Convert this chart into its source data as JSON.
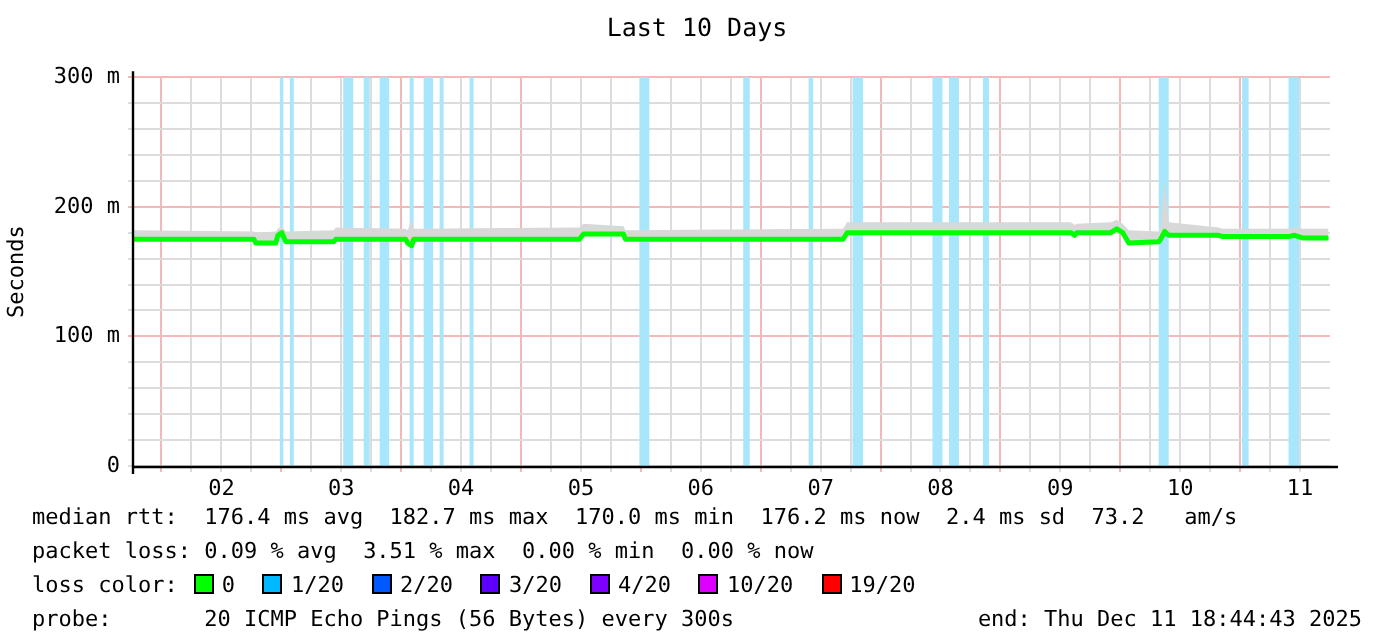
{
  "chart_data": {
    "type": "line",
    "title": "Last 10 Days",
    "ylabel": "Seconds",
    "legend_title": "loss color:",
    "legend": "bottom left",
    "grid": true,
    "xlim": [
      "2025-12-01T06:30",
      "2025-12-11T06:00"
    ],
    "xticks": [
      {
        "value": "2025-12-01T12:00",
        "label": null
      },
      {
        "value": "2025-12-01T18:00",
        "label": null
      },
      {
        "value": "2025-12-02T00:00",
        "label": "02"
      },
      {
        "value": "2025-12-02T06:00",
        "label": null
      },
      {
        "value": "2025-12-02T12:00",
        "label": null
      },
      {
        "value": "2025-12-02T18:00",
        "label": null
      },
      {
        "value": "2025-12-03T00:00",
        "label": "03"
      },
      {
        "value": "2025-12-03T06:00",
        "label": null
      },
      {
        "value": "2025-12-03T12:00",
        "label": null
      },
      {
        "value": "2025-12-03T18:00",
        "label": null
      },
      {
        "value": "2025-12-04T00:00",
        "label": "04"
      },
      {
        "value": "2025-12-04T06:00",
        "label": null
      },
      {
        "value": "2025-12-04T12:00",
        "label": null
      },
      {
        "value": "2025-12-04T18:00",
        "label": null
      },
      {
        "value": "2025-12-05T00:00",
        "label": "05"
      },
      {
        "value": "2025-12-05T06:00",
        "label": null
      },
      {
        "value": "2025-12-05T12:00",
        "label": null
      },
      {
        "value": "2025-12-05T18:00",
        "label": null
      },
      {
        "value": "2025-12-06T00:00",
        "label": "06"
      },
      {
        "value": "2025-12-06T06:00",
        "label": null
      },
      {
        "value": "2025-12-06T12:00",
        "label": null
      },
      {
        "value": "2025-12-06T18:00",
        "label": null
      },
      {
        "value": "2025-12-07T00:00",
        "label": "07"
      },
      {
        "value": "2025-12-07T06:00",
        "label": null
      },
      {
        "value": "2025-12-07T12:00",
        "label": null
      },
      {
        "value": "2025-12-07T18:00",
        "label": null
      },
      {
        "value": "2025-12-08T00:00",
        "label": "08"
      },
      {
        "value": "2025-12-08T06:00",
        "label": null
      },
      {
        "value": "2025-12-08T12:00",
        "label": null
      },
      {
        "value": "2025-12-08T18:00",
        "label": null
      },
      {
        "value": "2025-12-09T00:00",
        "label": "09"
      },
      {
        "value": "2025-12-09T06:00",
        "label": null
      },
      {
        "value": "2025-12-09T12:00",
        "label": null
      },
      {
        "value": "2025-12-09T18:00",
        "label": null
      },
      {
        "value": "2025-12-10T00:00",
        "label": "10"
      },
      {
        "value": "2025-12-10T06:00",
        "label": null
      },
      {
        "value": "2025-12-10T12:00",
        "label": null
      },
      {
        "value": "2025-12-10T18:00",
        "label": null
      },
      {
        "value": "2025-12-11T00:00",
        "label": "11"
      }
    ],
    "ylim": [
      0,
      300
    ],
    "yticks": [
      {
        "value": 0,
        "label": "0"
      },
      {
        "value": 20,
        "label": null
      },
      {
        "value": 40,
        "label": null
      },
      {
        "value": 60,
        "label": null
      },
      {
        "value": 80,
        "label": null
      },
      {
        "value": 100,
        "label": "100 m"
      },
      {
        "value": 120,
        "label": null
      },
      {
        "value": 140,
        "label": null
      },
      {
        "value": 160,
        "label": null
      },
      {
        "value": 180,
        "label": null
      },
      {
        "value": 200,
        "label": "200 m"
      },
      {
        "value": 220,
        "label": null
      },
      {
        "value": 240,
        "label": null
      },
      {
        "value": 260,
        "label": null
      },
      {
        "value": 280,
        "label": null
      },
      {
        "value": 300,
        "label": "300 m"
      }
    ],
    "series": [
      {
        "name": "0",
        "color": "#00ff00",
        "x": [
          "2025-12-01T06:30",
          "2025-12-02T06:30",
          "2025-12-02T06:54",
          "2025-12-02T10:54",
          "2025-12-02T11:18",
          "2025-12-02T12:06",
          "2025-12-02T12:54",
          "2025-12-02T22:30",
          "2025-12-02T22:54",
          "2025-12-03T12:54",
          "2025-12-03T13:18",
          "2025-12-03T14:06",
          "2025-12-03T14:30",
          "2025-12-04T23:42",
          "2025-12-05T00:30",
          "2025-12-05T08:30",
          "2025-12-05T08:54",
          "2025-12-07T04:30",
          "2025-12-07T05:18",
          "2025-12-09T02:06",
          "2025-12-09T02:54",
          "2025-12-09T03:18",
          "2025-12-09T10:06",
          "2025-12-09T11:18",
          "2025-12-09T12:30",
          "2025-12-09T13:42",
          "2025-12-09T19:42",
          "2025-12-09T20:06",
          "2025-12-09T20:54",
          "2025-12-09T21:42",
          "2025-12-10T07:42",
          "2025-12-10T08:30",
          "2025-12-10T21:42",
          "2025-12-10T22:54",
          "2025-12-11T00:30",
          "2025-12-11T05:42"
        ],
        "values": [
          175,
          175,
          172,
          172,
          178,
          180,
          173,
          173,
          175,
          175,
          172,
          170,
          175,
          175,
          179,
          179,
          175,
          175,
          180,
          180,
          178,
          180,
          180,
          183,
          180,
          172,
          173,
          175,
          181,
          178,
          178,
          177,
          177,
          178,
          176,
          176
        ],
        "lower": [
          174,
          174,
          171,
          171,
          176,
          178,
          172,
          172,
          174,
          174,
          171,
          169,
          174,
          174,
          178,
          178,
          174,
          174,
          179,
          179,
          177,
          179,
          179,
          182,
          179,
          171,
          172,
          174,
          179,
          177,
          177,
          176,
          176,
          177,
          175,
          175
        ],
        "upper": [
          182,
          181,
          180,
          181,
          183,
          185,
          181,
          182,
          184,
          183,
          182,
          190,
          183,
          184,
          187,
          185,
          182,
          183,
          188,
          188,
          186,
          187,
          188,
          190,
          187,
          182,
          181,
          184,
          220,
          188,
          184,
          183,
          183,
          184,
          183,
          183
        ]
      },
      {
        "name": "1/20",
        "color": "#00b8ff"
      },
      {
        "name": "2/20",
        "color": "#0059ff"
      },
      {
        "name": "3/20",
        "color": "#5e00ff"
      },
      {
        "name": "4/20",
        "color": "#7e00ff"
      },
      {
        "name": "10/20",
        "color": "#dd00ff"
      },
      {
        "name": "19/20",
        "color": "#ff0000"
      }
    ],
    "bands": [
      {
        "axis": "x",
        "from": "2025-12-02T11:42",
        "to": "2025-12-02T12:24",
        "color": "#a8e6fc"
      },
      {
        "axis": "x",
        "from": "2025-12-02T13:42",
        "to": "2025-12-02T14:30",
        "color": "#a8e6fc"
      },
      {
        "axis": "x",
        "from": "2025-12-03T00:24",
        "to": "2025-12-03T02:24",
        "color": "#a8e6fc"
      },
      {
        "axis": "x",
        "from": "2025-12-03T04:30",
        "to": "2025-12-03T05:42",
        "color": "#a8e6fc"
      },
      {
        "axis": "x",
        "from": "2025-12-03T07:42",
        "to": "2025-12-03T09:36",
        "color": "#a8e6fc"
      },
      {
        "axis": "x",
        "from": "2025-12-03T13:42",
        "to": "2025-12-03T14:30",
        "color": "#a8e6fc"
      },
      {
        "axis": "x",
        "from": "2025-12-03T16:30",
        "to": "2025-12-03T18:24",
        "color": "#a8e6fc"
      },
      {
        "axis": "x",
        "from": "2025-12-03T19:42",
        "to": "2025-12-03T20:30",
        "color": "#a8e6fc"
      },
      {
        "axis": "x",
        "from": "2025-12-04T01:42",
        "to": "2025-12-04T02:30",
        "color": "#a8e6fc"
      },
      {
        "axis": "x",
        "from": "2025-12-05T11:42",
        "to": "2025-12-05T13:42",
        "color": "#a8e6fc"
      },
      {
        "axis": "x",
        "from": "2025-12-06T08:30",
        "to": "2025-12-06T09:48",
        "color": "#a8e6fc"
      },
      {
        "axis": "x",
        "from": "2025-12-06T21:36",
        "to": "2025-12-06T22:30",
        "color": "#a8e6fc"
      },
      {
        "axis": "x",
        "from": "2025-12-07T06:24",
        "to": "2025-12-07T08:30",
        "color": "#a8e6fc"
      },
      {
        "axis": "x",
        "from": "2025-12-07T22:24",
        "to": "2025-12-08T00:24",
        "color": "#a8e6fc"
      },
      {
        "axis": "x",
        "from": "2025-12-08T01:42",
        "to": "2025-12-08T03:42",
        "color": "#a8e6fc"
      },
      {
        "axis": "x",
        "from": "2025-12-08T08:30",
        "to": "2025-12-08T09:42",
        "color": "#a8e6fc"
      },
      {
        "axis": "x",
        "from": "2025-12-09T19:42",
        "to": "2025-12-09T21:42",
        "color": "#a8e6fc"
      },
      {
        "axis": "x",
        "from": "2025-12-10T12:24",
        "to": "2025-12-10T13:42",
        "color": "#a8e6fc"
      },
      {
        "axis": "x",
        "from": "2025-12-10T21:42",
        "to": "2025-12-10T23:48",
        "color": "#a8e6fc"
      }
    ],
    "annotations": [
      "median rtt:  176.4 ms avg  182.7 ms max  170.0 ms min  176.2 ms now  2.4 ms sd  73.2   am/s",
      "packet loss: 0.09 % avg  3.51 % max  0.00 % min  0.00 % now",
      "probe:       20 ICMP Echo Pings (56 Bytes) every 300s",
      "end: Thu Dec 11 18:44:43 2025"
    ]
  }
}
